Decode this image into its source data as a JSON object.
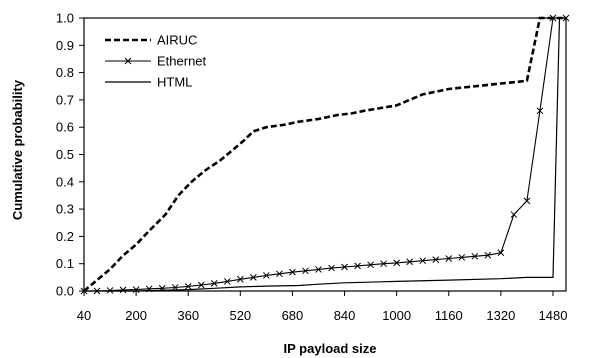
{
  "chart_data": {
    "type": "line",
    "title": "",
    "xlabel": "IP payload  size",
    "ylabel": "Cumulative probability",
    "xlim": [
      40,
      1520
    ],
    "ylim": [
      0,
      1
    ],
    "x_ticks": [
      40,
      200,
      360,
      520,
      680,
      840,
      1000,
      1160,
      1320,
      1480
    ],
    "x_tick_labels": [
      "40",
      "200",
      "360",
      "520",
      "680",
      "840",
      "1000",
      "1160",
      "1320",
      "1480"
    ],
    "y_ticks": [
      0,
      0.1,
      0.2,
      0.3,
      0.4,
      0.5,
      0.6,
      0.7,
      0.8,
      0.9,
      1
    ],
    "y_tick_labels": [
      "0.0",
      "0.1",
      "0.2",
      "0.3",
      "0.4",
      "0.5",
      "0.6",
      "0.7",
      "0.8",
      "0.9",
      "1.0"
    ],
    "grid": false,
    "legend_position": "top-left",
    "series": [
      {
        "name": "AIRUC",
        "style": "dashed",
        "marker": "none",
        "color": "#000000",
        "x": [
          40,
          80,
          120,
          160,
          200,
          240,
          290,
          330,
          370,
          410,
          460,
          500,
          530,
          560,
          600,
          660,
          700,
          760,
          820,
          860,
          900,
          950,
          1000,
          1040,
          1080,
          1120,
          1160,
          1200,
          1240,
          1280,
          1320,
          1360,
          1400,
          1440,
          1460,
          1480,
          1500,
          1520
        ],
        "y": [
          0.0,
          0.04,
          0.08,
          0.13,
          0.17,
          0.22,
          0.28,
          0.35,
          0.4,
          0.44,
          0.48,
          0.52,
          0.55,
          0.585,
          0.6,
          0.61,
          0.62,
          0.63,
          0.645,
          0.65,
          0.66,
          0.67,
          0.68,
          0.7,
          0.72,
          0.73,
          0.74,
          0.745,
          0.75,
          0.755,
          0.76,
          0.765,
          0.77,
          1.0,
          1.0,
          1.0,
          1.0,
          1.0
        ]
      },
      {
        "name": "Ethernet",
        "style": "solid",
        "marker": "x",
        "color": "#000000",
        "x": [
          40,
          80,
          120,
          160,
          200,
          240,
          280,
          320,
          360,
          400,
          440,
          480,
          520,
          560,
          600,
          640,
          680,
          720,
          760,
          800,
          840,
          880,
          920,
          960,
          1000,
          1040,
          1080,
          1120,
          1160,
          1200,
          1240,
          1280,
          1320,
          1360,
          1400,
          1440,
          1480,
          1520
        ],
        "y": [
          0.0,
          0.0,
          0.002,
          0.004,
          0.005,
          0.008,
          0.01,
          0.013,
          0.017,
          0.022,
          0.028,
          0.035,
          0.043,
          0.05,
          0.057,
          0.063,
          0.069,
          0.074,
          0.079,
          0.084,
          0.088,
          0.092,
          0.096,
          0.1,
          0.103,
          0.107,
          0.111,
          0.115,
          0.119,
          0.123,
          0.127,
          0.131,
          0.14,
          0.28,
          0.33,
          0.66,
          1.0,
          1.0
        ]
      },
      {
        "name": "HTML",
        "style": "solid",
        "marker": "none",
        "color": "#000000",
        "x": [
          40,
          200,
          360,
          440,
          520,
          600,
          700,
          760,
          840,
          1000,
          1160,
          1320,
          1400,
          1480,
          1500,
          1520
        ],
        "y": [
          0.0,
          0.0,
          0.005,
          0.01,
          0.015,
          0.018,
          0.02,
          0.025,
          0.03,
          0.035,
          0.04,
          0.045,
          0.05,
          0.05,
          1.0,
          1.0
        ]
      }
    ]
  }
}
